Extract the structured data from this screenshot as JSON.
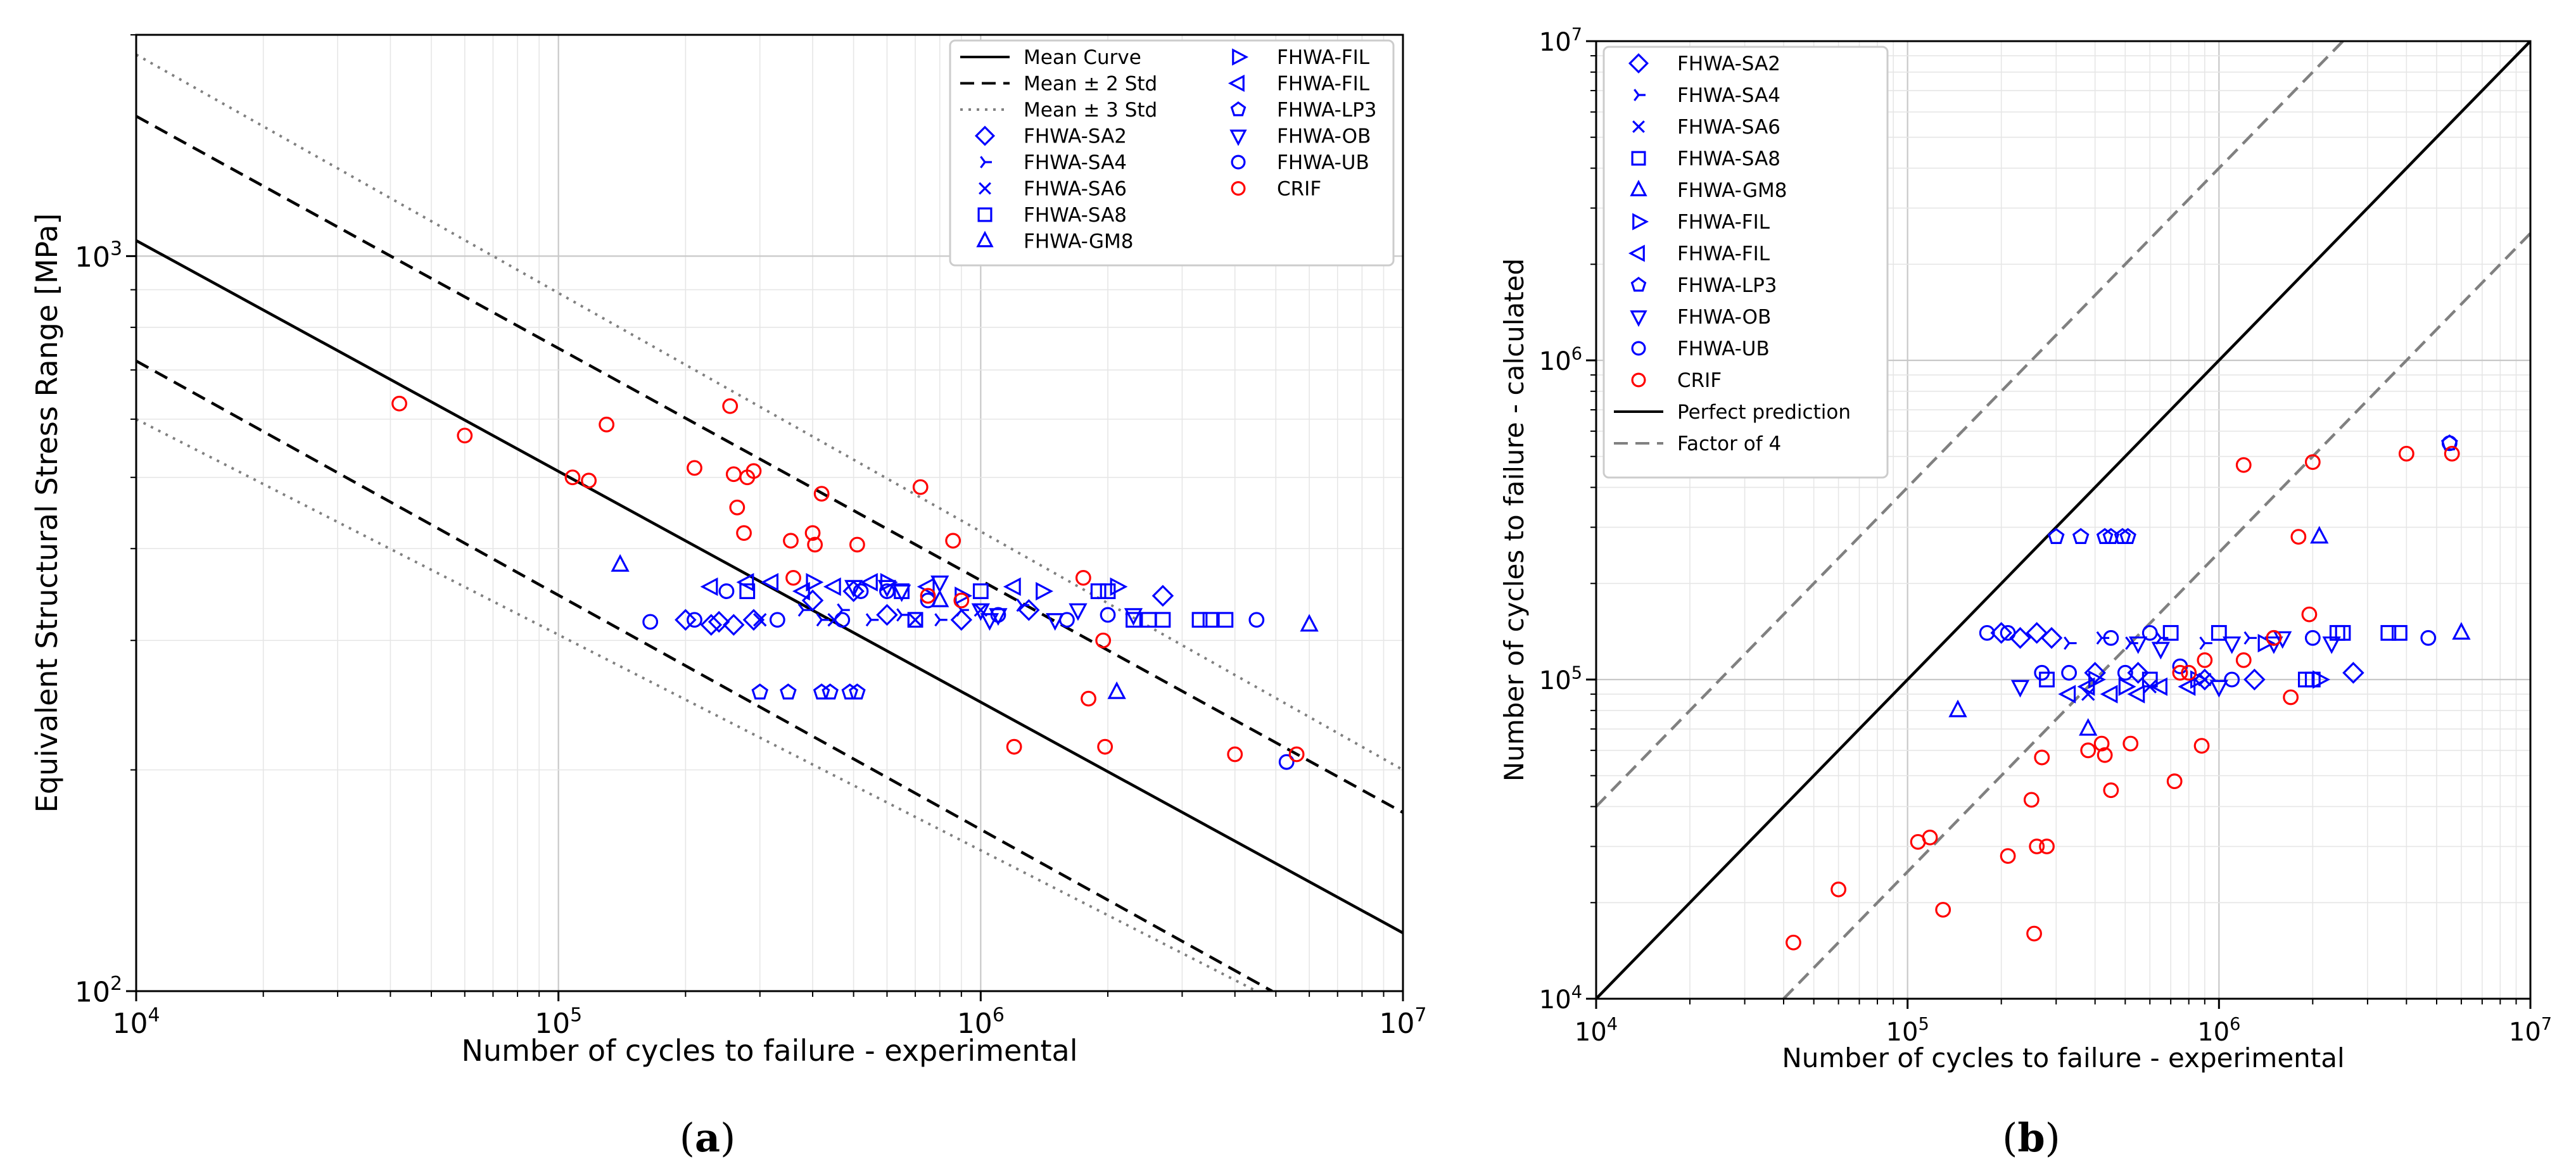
{
  "colors": {
    "blue": "#0000ff",
    "red": "#ff0000",
    "black": "#000000",
    "gray": "#808080"
  },
  "panels": [
    {
      "caption_open": "(",
      "caption_letter": "a",
      "caption_close": ")"
    },
    {
      "caption_open": "(",
      "caption_letter": "b",
      "caption_close": ")"
    }
  ],
  "chart_data": [
    {
      "type": "scatter",
      "title": "",
      "xlabel": "Number of cycles to failure - experimental",
      "ylabel": "Equivalent Structural Stress Range [MPa]",
      "xscale": "log",
      "yscale": "log",
      "xlim": [
        10000,
        10000000
      ],
      "ylim": [
        100,
        2000
      ],
      "x_major_ticks": [
        10000,
        100000,
        1000000,
        10000000
      ],
      "y_major_ticks": [
        100,
        1000
      ],
      "legend_placement": "top-right",
      "legend": [
        {
          "label": "Mean Curve",
          "kind": "line",
          "dash": "solid",
          "color": "#000000"
        },
        {
          "label": "Mean ± 2 Std",
          "kind": "line",
          "dash": "dashed",
          "color": "#000000"
        },
        {
          "label": "Mean ± 3 Std",
          "kind": "line",
          "dash": "dotted",
          "color": "#808080"
        },
        {
          "label": "FHWA-SA2",
          "kind": "marker",
          "marker": "diamond",
          "color": "#0000ff"
        },
        {
          "label": "FHWA-SA4",
          "kind": "marker",
          "marker": "tri_right",
          "color": "#0000ff"
        },
        {
          "label": "FHWA-SA6",
          "kind": "marker",
          "marker": "x",
          "color": "#0000ff"
        },
        {
          "label": "FHWA-SA8",
          "kind": "marker",
          "marker": "square",
          "color": "#0000ff"
        },
        {
          "label": "FHWA-GM8",
          "kind": "marker",
          "marker": "triangle_up",
          "color": "#0000ff"
        },
        {
          "label": "FHWA-FIL",
          "kind": "marker",
          "marker": "triangle_right",
          "color": "#0000ff"
        },
        {
          "label": "FHWA-FIL",
          "kind": "marker",
          "marker": "triangle_left",
          "color": "#0000ff"
        },
        {
          "label": "FHWA-LP3",
          "kind": "marker",
          "marker": "pentagon",
          "color": "#0000ff"
        },
        {
          "label": "FHWA-OB",
          "kind": "marker",
          "marker": "triangle_down",
          "color": "#0000ff"
        },
        {
          "label": "FHWA-UB",
          "kind": "marker",
          "marker": "circle",
          "color": "#0000ff"
        },
        {
          "label": "CRIF",
          "kind": "marker",
          "marker": "circle",
          "color": "#ff0000"
        }
      ],
      "lines": [
        {
          "name": "Mean Curve",
          "x": [
            10000,
            10000000
          ],
          "y": [
            1050,
            120
          ],
          "dash": "solid",
          "color": "#000000"
        },
        {
          "name": "Mean + 2 Std",
          "x": [
            10000,
            10000000
          ],
          "y": [
            1550,
            175
          ],
          "dash": "dashed",
          "color": "#000000"
        },
        {
          "name": "Mean - 2 Std",
          "x": [
            10000,
            4900000
          ],
          "y": [
            720,
            100
          ],
          "dash": "dashed",
          "color": "#000000"
        },
        {
          "name": "Mean + 3 Std",
          "x": [
            10000,
            10000000
          ],
          "y": [
            1880,
            200
          ],
          "dash": "dotted",
          "color": "#808080"
        },
        {
          "name": "Mean - 3 Std",
          "x": [
            10000,
            4500000
          ],
          "y": [
            600,
            100
          ],
          "dash": "dotted",
          "color": "#808080"
        }
      ],
      "series": [
        {
          "name": "FHWA-SA2",
          "marker": "diamond",
          "color": "#0000ff",
          "x": [
            200000,
            230000,
            240000,
            260000,
            290000,
            400000,
            500000,
            600000,
            900000,
            1300000,
            2700000
          ],
          "y": [
            320,
            315,
            318,
            315,
            320,
            340,
            350,
            325,
            320,
            330,
            345
          ]
        },
        {
          "name": "FHWA-SA4",
          "marker": "tri_right",
          "color": "#0000ff",
          "x": [
            380000,
            420000,
            470000,
            550000,
            650000,
            800000,
            900000,
            1250000
          ],
          "y": [
            330,
            320,
            330,
            320,
            325,
            320,
            330,
            335
          ]
        },
        {
          "name": "FHWA-SA6",
          "marker": "x",
          "color": "#0000ff",
          "x": [
            300000,
            450000,
            700000,
            1000000
          ],
          "y": [
            320,
            320,
            320,
            330
          ]
        },
        {
          "name": "FHWA-SA8",
          "marker": "square",
          "color": "#0000ff",
          "x": [
            280000,
            650000,
            700000,
            1000000,
            1900000,
            2000000,
            2300000,
            2500000,
            2700000,
            3300000,
            3500000,
            3800000
          ],
          "y": [
            350,
            350,
            320,
            350,
            350,
            350,
            320,
            320,
            320,
            320,
            320,
            320
          ]
        },
        {
          "name": "FHWA-GM8",
          "marker": "triangle_up",
          "color": "#0000ff",
          "x": [
            140000,
            800000,
            2100000,
            6000000
          ],
          "y": [
            380,
            340,
            255,
            315
          ]
        },
        {
          "name": "FHWA-FIL",
          "marker": "triangle_right",
          "color": "#0000ff",
          "x": [
            400000,
            600000,
            900000,
            1400000,
            2100000
          ],
          "y": [
            360,
            360,
            345,
            350,
            355
          ]
        },
        {
          "name": "FHWA-FIL",
          "marker": "triangle_left",
          "color": "#0000ff",
          "x": [
            230000,
            280000,
            320000,
            380000,
            450000,
            550000,
            750000,
            1200000
          ],
          "y": [
            355,
            360,
            360,
            350,
            355,
            360,
            355,
            355
          ]
        },
        {
          "name": "FHWA-LP3",
          "marker": "pentagon",
          "color": "#0000ff",
          "x": [
            300000,
            350000,
            420000,
            440000,
            490000,
            510000
          ],
          "y": [
            255,
            255,
            255,
            255,
            255,
            255
          ]
        },
        {
          "name": "FHWA-OB",
          "marker": "triangle_down",
          "color": "#0000ff",
          "x": [
            500000,
            600000,
            650000,
            800000,
            1000000,
            1050000,
            1100000,
            1500000,
            1700000,
            2300000
          ],
          "y": [
            355,
            355,
            350,
            360,
            330,
            320,
            325,
            320,
            330,
            325
          ]
        },
        {
          "name": "FHWA-UB",
          "marker": "circle",
          "color": "#0000ff",
          "x": [
            165000,
            210000,
            250000,
            330000,
            470000,
            520000,
            600000,
            750000,
            1100000,
            1600000,
            2000000,
            4500000,
            5300000
          ],
          "y": [
            318,
            320,
            350,
            320,
            320,
            350,
            350,
            340,
            325,
            320,
            325,
            320,
            205
          ]
        },
        {
          "name": "CRIF",
          "marker": "circle",
          "color": "#ff0000",
          "x": [
            42000,
            60000,
            108000,
            118000,
            130000,
            210000,
            255000,
            260000,
            265000,
            275000,
            280000,
            290000,
            355000,
            360000,
            400000,
            405000,
            420000,
            510000,
            720000,
            750000,
            860000,
            900000,
            1200000,
            1750000,
            1800000,
            1950000,
            1970000,
            4000000,
            5600000
          ],
          "y": [
            630,
            570,
            500,
            495,
            590,
            515,
            625,
            505,
            455,
            420,
            500,
            510,
            410,
            365,
            420,
            405,
            475,
            405,
            485,
            345,
            410,
            340,
            215,
            365,
            250,
            300,
            215,
            210,
            210
          ]
        }
      ]
    },
    {
      "type": "scatter",
      "title": "",
      "xlabel": "Number of cycles to failure - experimental",
      "ylabel": "Number of cycles to failure - calculated",
      "xscale": "log",
      "yscale": "log",
      "xlim": [
        10000,
        10000000
      ],
      "ylim": [
        10000,
        10000000
      ],
      "x_major_ticks": [
        10000,
        100000,
        1000000,
        10000000
      ],
      "y_major_ticks": [
        10000,
        100000,
        1000000,
        10000000
      ],
      "legend_placement": "top-left",
      "legend": [
        {
          "label": "FHWA-SA2",
          "kind": "marker",
          "marker": "diamond",
          "color": "#0000ff"
        },
        {
          "label": "FHWA-SA4",
          "kind": "marker",
          "marker": "tri_right",
          "color": "#0000ff"
        },
        {
          "label": "FHWA-SA6",
          "kind": "marker",
          "marker": "x",
          "color": "#0000ff"
        },
        {
          "label": "FHWA-SA8",
          "kind": "marker",
          "marker": "square",
          "color": "#0000ff"
        },
        {
          "label": "FHWA-GM8",
          "kind": "marker",
          "marker": "triangle_up",
          "color": "#0000ff"
        },
        {
          "label": "FHWA-FIL",
          "kind": "marker",
          "marker": "triangle_right",
          "color": "#0000ff"
        },
        {
          "label": "FHWA-FIL",
          "kind": "marker",
          "marker": "triangle_left",
          "color": "#0000ff"
        },
        {
          "label": "FHWA-LP3",
          "kind": "marker",
          "marker": "pentagon",
          "color": "#0000ff"
        },
        {
          "label": "FHWA-OB",
          "kind": "marker",
          "marker": "triangle_down",
          "color": "#0000ff"
        },
        {
          "label": "FHWA-UB",
          "kind": "marker",
          "marker": "circle",
          "color": "#0000ff"
        },
        {
          "label": "CRIF",
          "kind": "marker",
          "marker": "circle",
          "color": "#ff0000"
        },
        {
          "label": "Perfect prediction",
          "kind": "line",
          "dash": "solid",
          "color": "#000000"
        },
        {
          "label": "Factor of 4",
          "kind": "line",
          "dash": "dashed",
          "color": "#808080"
        }
      ],
      "lines": [
        {
          "name": "Perfect prediction",
          "x": [
            10000,
            10000000
          ],
          "y": [
            10000,
            10000000
          ],
          "dash": "solid",
          "color": "#000000"
        },
        {
          "name": "Factor of 4 (upper)",
          "x": [
            10000,
            2500000
          ],
          "y": [
            40000,
            10000000
          ],
          "dash": "dashed",
          "color": "#808080"
        },
        {
          "name": "Factor of 4 (lower)",
          "x": [
            40000,
            10000000
          ],
          "y": [
            10000,
            2500000
          ],
          "dash": "dashed",
          "color": "#808080"
        }
      ],
      "series": [
        {
          "name": "FHWA-SA2",
          "marker": "diamond",
          "color": "#0000ff",
          "x": [
            200000,
            230000,
            260000,
            290000,
            400000,
            550000,
            900000,
            1300000,
            2700000
          ],
          "y": [
            140000,
            135000,
            140000,
            135000,
            105000,
            105000,
            100000,
            100000,
            105000
          ]
        },
        {
          "name": "FHWA-SA4",
          "marker": "tri_right",
          "color": "#0000ff",
          "x": [
            330000,
            420000,
            520000,
            650000,
            900000,
            1250000
          ],
          "y": [
            130000,
            135000,
            130000,
            135000,
            130000,
            135000
          ]
        },
        {
          "name": "FHWA-SA6",
          "marker": "x",
          "color": "#0000ff",
          "x": [
            380000,
            600000,
            900000
          ],
          "y": [
            90000,
            95000,
            100000
          ]
        },
        {
          "name": "FHWA-SA8",
          "marker": "square",
          "color": "#0000ff",
          "x": [
            280000,
            600000,
            700000,
            1000000,
            1900000,
            2000000,
            2400000,
            2500000,
            3500000,
            3800000
          ],
          "y": [
            100000,
            100000,
            140000,
            140000,
            100000,
            100000,
            140000,
            140000,
            140000,
            140000
          ]
        },
        {
          "name": "FHWA-GM8",
          "marker": "triangle_up",
          "color": "#0000ff",
          "x": [
            145000,
            380000,
            2100000,
            6000000
          ],
          "y": [
            80000,
            70000,
            280000,
            140000
          ]
        },
        {
          "name": "FHWA-FIL",
          "marker": "triangle_right",
          "color": "#0000ff",
          "x": [
            400000,
            500000,
            850000,
            1400000,
            2100000
          ],
          "y": [
            100000,
            95000,
            100000,
            130000,
            100000
          ]
        },
        {
          "name": "FHWA-FIL",
          "marker": "triangle_left",
          "color": "#0000ff",
          "x": [
            330000,
            380000,
            450000,
            550000,
            650000,
            800000
          ],
          "y": [
            90000,
            95000,
            90000,
            90000,
            95000,
            95000
          ]
        },
        {
          "name": "FHWA-LP3",
          "marker": "pentagon",
          "color": "#0000ff",
          "x": [
            300000,
            360000,
            430000,
            450000,
            490000,
            510000,
            5500000
          ],
          "y": [
            280000,
            280000,
            280000,
            280000,
            280000,
            280000,
            550000
          ]
        },
        {
          "name": "FHWA-OB",
          "marker": "triangle_down",
          "color": "#0000ff",
          "x": [
            230000,
            550000,
            650000,
            1000000,
            1100000,
            1500000,
            1600000,
            2300000
          ],
          "y": [
            95000,
            130000,
            125000,
            95000,
            130000,
            130000,
            135000,
            130000
          ]
        },
        {
          "name": "FHWA-UB",
          "marker": "circle",
          "color": "#0000ff",
          "x": [
            180000,
            210000,
            270000,
            330000,
            450000,
            500000,
            600000,
            750000,
            1100000,
            1500000,
            2000000,
            4700000,
            5500000
          ],
          "y": [
            140000,
            140000,
            105000,
            105000,
            135000,
            105000,
            140000,
            110000,
            100000,
            135000,
            135000,
            135000,
            550000
          ]
        },
        {
          "name": "CRIF",
          "marker": "circle",
          "color": "#ff0000",
          "x": [
            43000,
            60000,
            108000,
            118000,
            130000,
            210000,
            250000,
            255000,
            260000,
            270000,
            280000,
            380000,
            420000,
            430000,
            450000,
            520000,
            720000,
            750000,
            800000,
            880000,
            900000,
            1200000,
            1200000,
            1500000,
            1700000,
            1800000,
            1950000,
            2000000,
            4000000,
            5600000
          ],
          "y": [
            15000,
            22000,
            31000,
            32000,
            19000,
            28000,
            42000,
            16000,
            30000,
            57000,
            30000,
            60000,
            63000,
            58000,
            45000,
            63000,
            48000,
            105000,
            105000,
            62000,
            115000,
            115000,
            470000,
            135000,
            88000,
            280000,
            160000,
            480000,
            510000,
            510000
          ]
        }
      ]
    }
  ]
}
